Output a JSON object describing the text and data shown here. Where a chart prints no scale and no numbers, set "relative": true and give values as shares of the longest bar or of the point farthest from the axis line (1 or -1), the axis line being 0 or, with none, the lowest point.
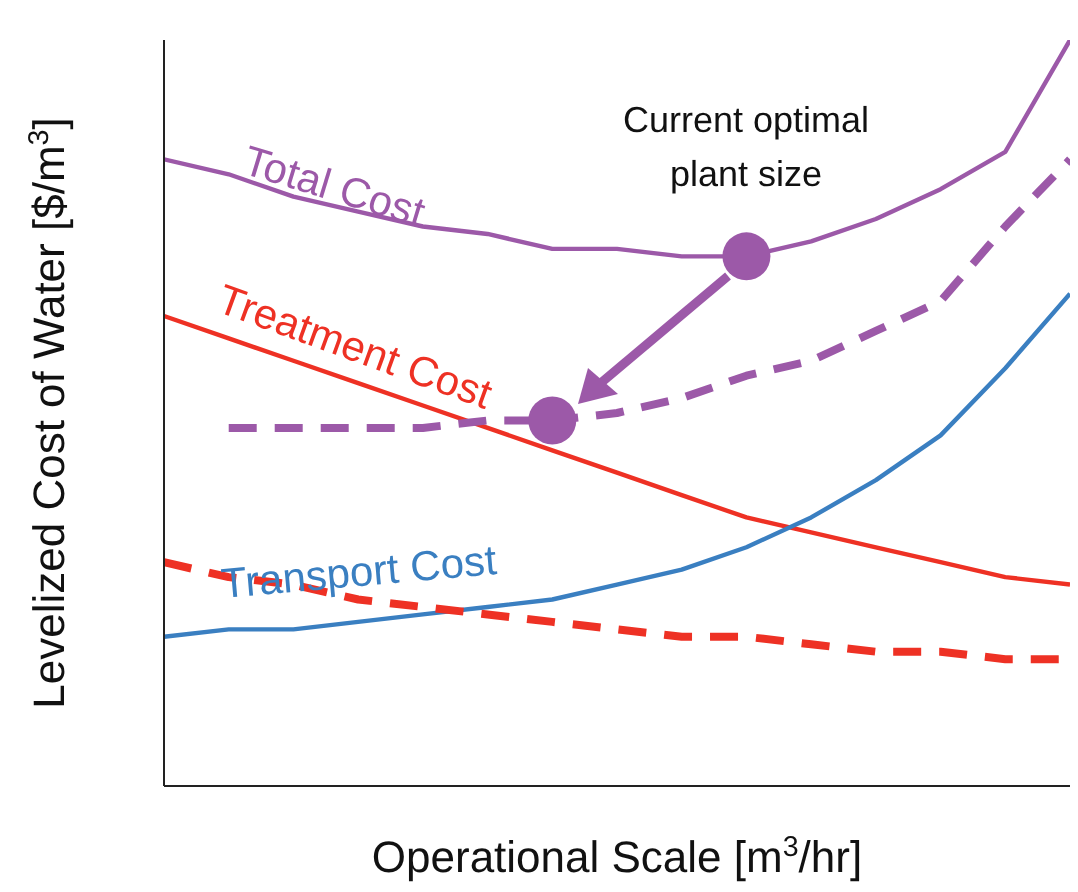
{
  "chart_data": {
    "type": "line",
    "relative": true,
    "xlabel": "Operational Scale [m$^{3}$/hr]",
    "ylabel": "Levelized Cost of Water [$/m$^{3}$]",
    "annotations": [
      "Current optimal\nplant size"
    ],
    "categories": [
      null,
      null,
      null,
      null,
      null,
      null,
      null,
      null,
      null,
      null,
      null,
      null,
      null,
      null,
      null
    ],
    "series": [
      {
        "name": "Total Cost",
        "color": "#9c59a8",
        "line_style": "solid",
        "values": [
          0.84,
          0.82,
          0.79,
          0.77,
          0.75,
          0.74,
          0.72,
          0.72,
          0.71,
          0.71,
          0.73,
          0.76,
          0.8,
          0.85,
          1
        ]
      },
      {
        "name": "Treatment Cost",
        "color": "#ee3124",
        "line_style": "solid",
        "values": [
          0.63,
          0.6,
          0.57,
          0.54,
          0.51,
          0.48,
          0.45,
          0.42,
          0.39,
          0.36,
          0.34,
          0.32,
          0.3,
          0.28,
          0.27
        ]
      },
      {
        "name": "Transport Cost",
        "color": "#3a7fc1",
        "line_style": "solid",
        "values": [
          0.2,
          0.21,
          0.21,
          0.22,
          0.23,
          0.24,
          0.25,
          0.27,
          0.29,
          0.32,
          0.36,
          0.41,
          0.47,
          0.56,
          0.66
        ]
      },
      {
        "color": "#ee3124",
        "line_style": "dashed",
        "values": [
          0.3,
          0.28,
          0.27,
          0.25,
          0.24,
          0.23,
          0.22,
          0.21,
          0.2,
          0.2,
          0.19,
          0.18,
          0.18,
          0.17,
          0.17
        ]
      },
      {
        "color": "#9c59a8",
        "line_style": "dashed",
        "values": [
          null,
          0.48,
          0.48,
          0.48,
          0.48,
          0.49,
          0.49,
          0.5,
          0.52,
          0.55,
          0.57,
          0.61,
          0.65,
          0.75,
          0.84
        ]
      }
    ]
  }
}
